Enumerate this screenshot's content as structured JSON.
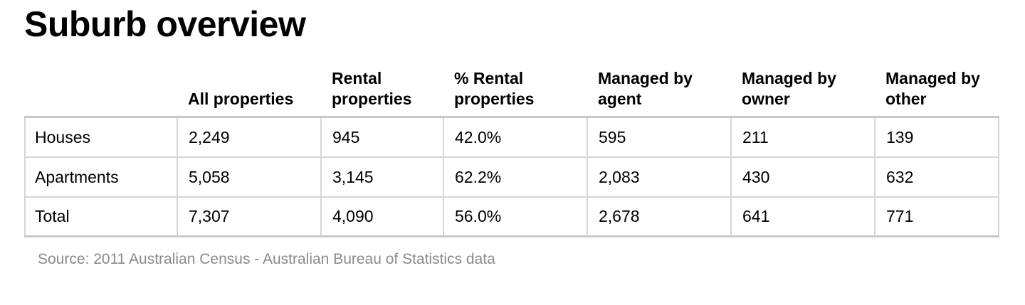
{
  "title": "Suburb overview",
  "table": {
    "columns": [
      "",
      "All properties",
      "Rental properties",
      "% Rental properties",
      "Managed by agent",
      "Managed by owner",
      "Managed by other"
    ],
    "rows": [
      {
        "label": "Houses",
        "cells": [
          "2,249",
          "945",
          "42.0%",
          "595",
          "211",
          "139"
        ]
      },
      {
        "label": "Apartments",
        "cells": [
          "5,058",
          "3,145",
          "62.2%",
          "2,083",
          "430",
          "632"
        ]
      },
      {
        "label": "Total",
        "cells": [
          "7,307",
          "4,090",
          "56.0%",
          "2,678",
          "641",
          "771"
        ]
      }
    ]
  },
  "source": "Source: 2011 Australian Census - Australian Bureau of Statistics data",
  "colors": {
    "text": "#000000",
    "border": "#d6d6d6",
    "source_text": "#8a8a8a"
  }
}
